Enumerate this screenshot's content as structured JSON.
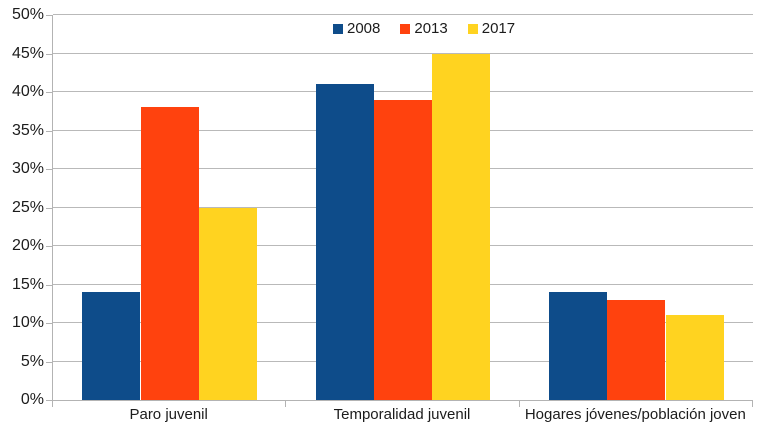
{
  "chart_data": {
    "type": "bar",
    "categories": [
      "Paro juvenil",
      "Temporalidad juvenil",
      "Hogares jóvenes/población joven"
    ],
    "series": [
      {
        "name": "2008",
        "color": "#0e4c8a",
        "values": [
          14,
          41,
          14
        ]
      },
      {
        "name": "2013",
        "color": "#ff420e",
        "values": [
          38,
          39,
          13
        ]
      },
      {
        "name": "2017",
        "color": "#ffd320",
        "values": [
          25,
          45,
          11
        ]
      }
    ],
    "title": "",
    "xlabel": "",
    "ylabel": "",
    "ylim": [
      0,
      50
    ],
    "y_tick_step": 5,
    "y_tick_labels": [
      "0%",
      "5%",
      "10%",
      "15%",
      "20%",
      "25%",
      "30%",
      "35%",
      "40%",
      "45%",
      "50%"
    ],
    "value_unit": "percent",
    "grid": true,
    "legend_position": "top-center"
  },
  "colors": {
    "background": "#ffffff",
    "gridline": "#b9b9b9",
    "axis": "#b3b3b3",
    "text": "#1c1c1c",
    "series_2008": "#0e4c8a",
    "series_2013": "#ff420e",
    "series_2017": "#ffd320"
  }
}
